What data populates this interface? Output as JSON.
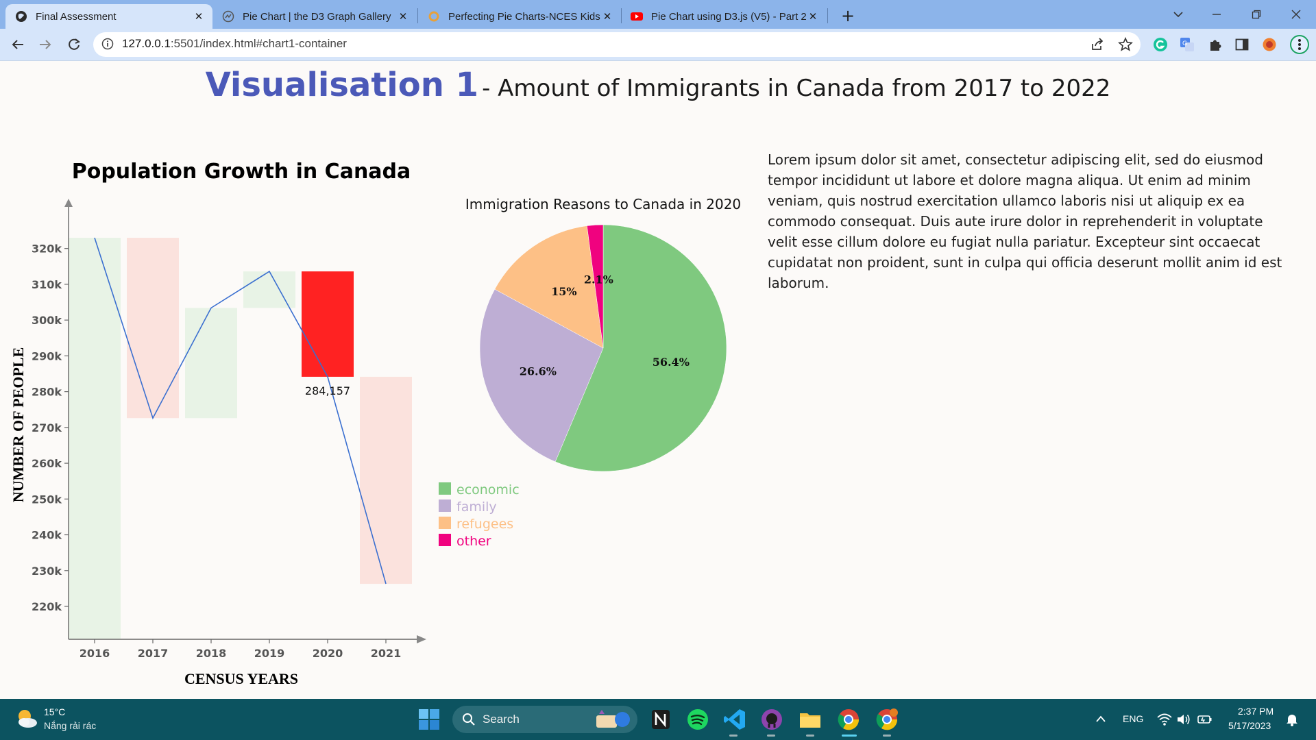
{
  "browser": {
    "tabs": [
      {
        "title": "Final Assessment",
        "active": true
      },
      {
        "title": "Pie Chart | the D3 Graph Gallery",
        "active": false
      },
      {
        "title": "Perfecting Pie Charts-NCES Kids'",
        "active": false
      },
      {
        "title": "Pie Chart using D3.js (V5) - Part 2",
        "active": false
      }
    ],
    "close_glyph": "✕",
    "new_tab_glyph": "+",
    "url_host": "127.0.0.1",
    "url_rest": ":5501/index.html#chart1-container"
  },
  "page": {
    "heading_main": "Visualisation 1",
    "heading_sub": "- Amount of Immigrants in Canada from 2017 to 2022",
    "heading_color": "#4b59b8",
    "lorem": "Lorem ipsum dolor sit amet, consectetur adipiscing elit, sed do eiusmod tempor incididunt ut labore et dolore magna aliqua. Ut enim ad minim veniam, quis nostrud exercitation ullamco laboris nisi ut aliquip ex ea commodo consequat. Duis aute irure dolor in reprehenderit in voluptate velit esse cillum dolore eu fugiat nulla pariatur. Excepteur sint occaecat cupidatat non proident, sunt in culpa qui officia deserunt mollit anim id est laborum."
  },
  "chart_data": [
    {
      "type": "bar",
      "subtype": "waterfall with line overlay",
      "title": "Population Growth in Canada",
      "xlabel": "CENSUS YEARS",
      "ylabel": "NUMBER OF PEOPLE",
      "categories": [
        "2016",
        "2017",
        "2018",
        "2019",
        "2020",
        "2021"
      ],
      "values": [
        323000,
        272600,
        303400,
        313600,
        284157,
        226300
      ],
      "ylim": [
        211000,
        332000
      ],
      "yticks": [
        220000,
        230000,
        240000,
        250000,
        260000,
        270000,
        280000,
        290000,
        300000,
        310000,
        320000
      ],
      "ytick_labels": [
        "220k",
        "230k",
        "240k",
        "250k",
        "260k",
        "270k",
        "280k",
        "290k",
        "300k",
        "310k",
        "320k"
      ],
      "highlight_index": 4,
      "highlight_label": "284,157",
      "colors": {
        "increase": "#e8f3e6",
        "decrease": "#fbe2dd",
        "highlight": "#ff2222",
        "line": "#3a6fd0"
      },
      "grid": false,
      "legend": "none"
    },
    {
      "type": "pie",
      "title": "Immigration Reasons to Canada in 2020",
      "slices": [
        {
          "label": "economic",
          "value": 56.4,
          "display": "56.4%",
          "color": "#7fc97f"
        },
        {
          "label": "family",
          "value": 26.6,
          "display": "26.6%",
          "color": "#beaed4"
        },
        {
          "label": "refugees",
          "value": 15.0,
          "display": "15%",
          "color": "#fdc086"
        },
        {
          "label": "other",
          "value": 2.1,
          "display": "2.1%",
          "color": "#f0027f"
        }
      ],
      "legend": "bottom-left"
    }
  ],
  "taskbar": {
    "weather_temp": "15°C",
    "weather_desc": "Nắng rải rác",
    "search_label": "Search",
    "apps": [
      "windows-start",
      "notion",
      "spotify",
      "vscode",
      "github-desktop",
      "file-explorer",
      "chrome",
      "chrome-profile"
    ],
    "lang": "ENG",
    "time": "2:37 PM",
    "date": "5/17/2023"
  }
}
